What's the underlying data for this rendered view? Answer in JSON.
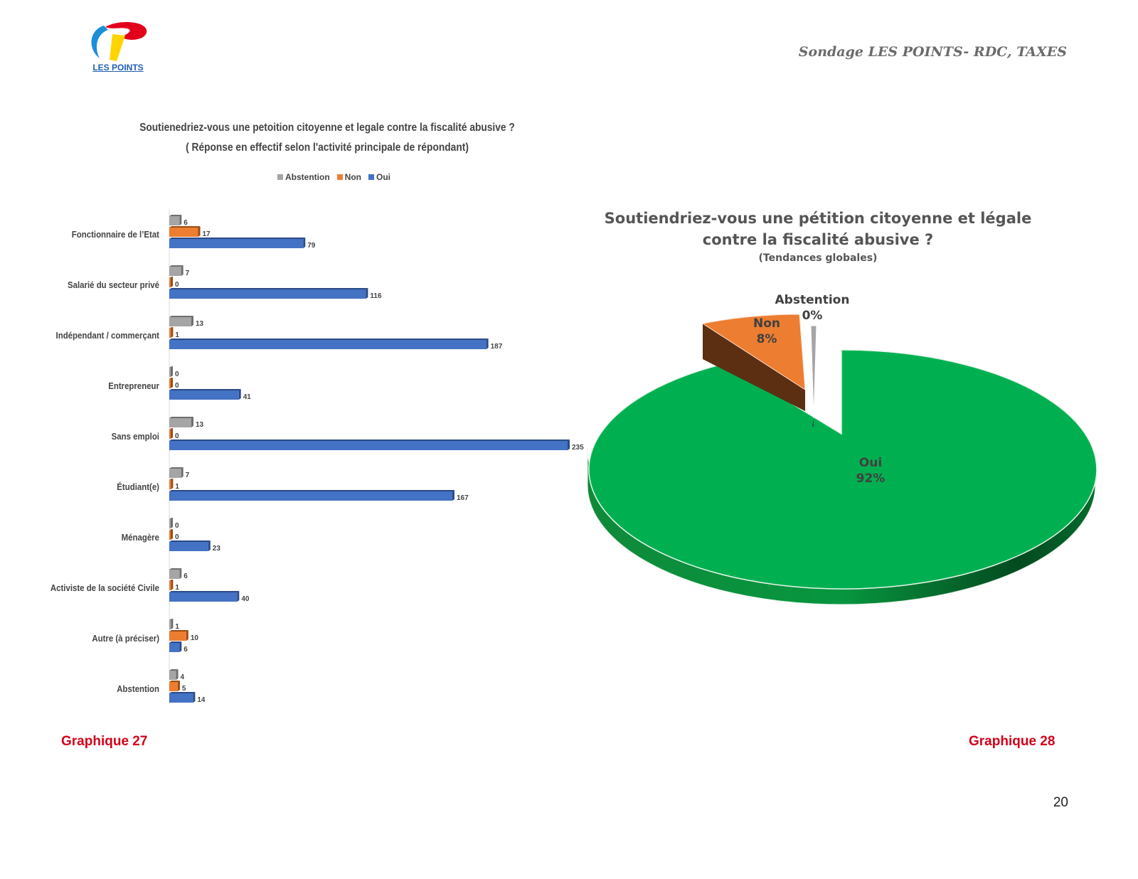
{
  "header": {
    "logo_text": "LES POINTS",
    "title": "Sondage LES POINTS- RDC, TAXES"
  },
  "chart_data": [
    {
      "type": "bar",
      "orientation": "horizontal",
      "title": "Soutienedriez-vous une petoition citoyenne et legale contre la fiscalité abusive ?",
      "subtitle": "( Réponse en effectif selon l'activité principale de répondant)",
      "legend_position": "top",
      "categories": [
        "Fonctionnaire de l’Etat",
        "Salarié du secteur privé",
        "Indépendant / commerçant",
        "Entrepreneur",
        "Sans emploi",
        "Étudiant(e)",
        "Ménagère",
        "Activiste de la société Civile",
        "Autre (à préciser)",
        "Abstention"
      ],
      "series": [
        {
          "name": "Abstention",
          "color": "#a5a5a5",
          "values": [
            6,
            7,
            13,
            0,
            13,
            7,
            0,
            6,
            1,
            4
          ]
        },
        {
          "name": "Non",
          "color": "#ed7d31",
          "values": [
            17,
            0,
            1,
            0,
            0,
            1,
            0,
            1,
            10,
            5
          ]
        },
        {
          "name": "Oui",
          "color": "#4472c4",
          "values": [
            79,
            116,
            187,
            41,
            235,
            167,
            23,
            40,
            6,
            14
          ]
        }
      ],
      "grid": false
    },
    {
      "type": "pie",
      "style": "3d-exploded",
      "title_line1": "Soutiendriez-vous une pétition citoyenne et légale",
      "title_line2": "contre la fiscalité abusive ?",
      "subtitle": "(Tendances globales)",
      "slices": [
        {
          "label": "Oui",
          "percent_label": "92%",
          "value": 92,
          "color": "#00b050"
        },
        {
          "label": "Non",
          "percent_label": "8%",
          "value": 8,
          "color": "#ed7d31"
        },
        {
          "label": "Abstention",
          "percent_label": "0%",
          "value": 0.4,
          "color": "#a5a5a5"
        }
      ]
    }
  ],
  "captions": {
    "left": "Graphique 27",
    "right": "Graphique 28"
  },
  "page_number": "20"
}
